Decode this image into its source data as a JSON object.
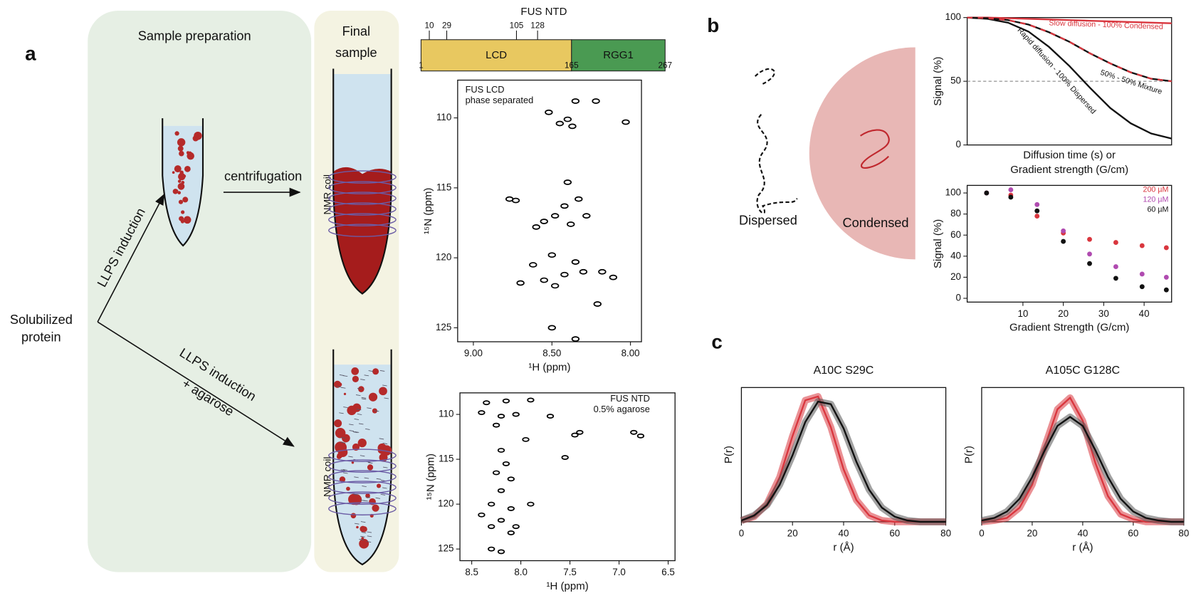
{
  "panel_a": {
    "label": "a",
    "sample_prep_title": "Sample preparation",
    "final_sample_title": [
      "Final",
      "sample"
    ],
    "solubilized": [
      "Solubilized",
      "protein"
    ],
    "llps_induction": "LLPS induction",
    "centrifugation": "centrifugation",
    "llps_agarose": [
      "LLPS induction",
      "+ agarose"
    ],
    "nmr_coil_top": "NMR coil",
    "nmr_coil_bottom": "NMR coil"
  },
  "domain_map": {
    "title": "FUS NTD",
    "segments": [
      {
        "name": "LCD",
        "start": 1,
        "end": 165,
        "color": "#e8c860"
      },
      {
        "name": "RGG1",
        "start": 165,
        "end": 267,
        "color": "#4a9a52"
      }
    ],
    "bottom_positions": [
      1,
      165,
      267
    ],
    "top_positions": [
      10,
      29,
      105,
      128
    ]
  },
  "panel_b": {
    "label": "b",
    "dispersed": "Dispersed",
    "condensed": "Condensed"
  },
  "panel_c": {
    "label": "c"
  },
  "chart_data": [
    {
      "type": "scatter",
      "annotation": [
        "FUS LCD",
        "phase separated"
      ],
      "xlabel": "¹H (ppm)",
      "ylabel": "¹⁵N (ppm)",
      "xlim": [
        9.1,
        7.93
      ],
      "ylim": [
        126,
        107.3
      ],
      "xticks": [
        {
          "value": 9,
          "label": "9.00"
        },
        {
          "value": 8.5,
          "label": "8.50"
        },
        {
          "value": 8,
          "label": "8.00"
        }
      ],
      "yticks": [
        110,
        115,
        120,
        125
      ],
      "x": [
        8.4,
        8.37,
        8.45,
        8.52,
        8.35,
        8.22,
        8.03,
        8.4,
        8.33,
        8.42,
        8.48,
        8.38,
        8.55,
        8.6,
        8.28,
        8.5,
        8.35,
        8.62,
        8.42,
        8.55,
        8.3,
        8.48,
        8.7,
        8.18,
        8.11,
        8.21,
        8.5,
        8.35,
        8.73,
        8.77
      ],
      "series": [
        {
          "color": "#000000",
          "values": [
            110.1,
            110.6,
            110.4,
            109.6,
            108.8,
            108.8,
            110.3,
            114.6,
            115.8,
            116.3,
            117,
            117.6,
            117.4,
            117.8,
            117,
            119.8,
            120.3,
            120.5,
            121.2,
            121.6,
            121,
            122,
            121.8,
            121,
            121.4,
            123.3,
            125,
            125.8,
            115.9,
            115.8
          ]
        }
      ]
    },
    {
      "type": "scatter",
      "annotation": [
        "FUS NTD",
        "0.5% agarose"
      ],
      "xlabel": "¹H (ppm)",
      "ylabel": "¹⁵N (ppm)",
      "xlim": [
        8.62,
        6.43
      ],
      "ylim": [
        126.3,
        107.6
      ],
      "xticks": [
        8.5,
        {
          "value": 8,
          "label": "8.0"
        },
        7.5,
        {
          "value": 7,
          "label": "7.0"
        },
        6.5
      ],
      "yticks": [
        110,
        115,
        120,
        125
      ],
      "x": [
        8.35,
        8.15,
        7.9,
        8.4,
        8.2,
        8.05,
        8.25,
        7.7,
        7.45,
        7.4,
        6.78,
        6.85,
        7.95,
        8.2,
        8.15,
        8.25,
        8.1,
        7.55,
        8.2,
        8.3,
        8.1,
        7.9,
        8.4,
        8.2,
        8.05,
        8.3,
        8.1,
        8.3,
        8.2
      ],
      "series": [
        {
          "color": "#000000",
          "values": [
            108.7,
            108.5,
            108.4,
            109.8,
            110.2,
            110,
            111.2,
            110.2,
            112.3,
            112,
            112.4,
            112,
            112.8,
            114,
            115.5,
            116.5,
            117.2,
            114.8,
            118.5,
            120,
            120.5,
            120,
            121.2,
            121.8,
            122.5,
            122.5,
            123.2,
            125,
            125.3
          ]
        }
      ]
    },
    {
      "type": "line",
      "xlabel": [
        "Diffusion time (s) or",
        "Gradient strength (G/cm)"
      ],
      "ylabel": "Signal (%)",
      "xlim": [
        0,
        10
      ],
      "ylim": [
        0,
        100
      ],
      "yticks": [
        0,
        50,
        100
      ],
      "hline": 50,
      "x": [
        0,
        1,
        2,
        3,
        4,
        5,
        6,
        7,
        8,
        9,
        10
      ],
      "series": [
        {
          "name": "Slow diffusion - 100% Condensed",
          "color": "#d9363e",
          "values": [
            100,
            100,
            99.5,
            99,
            98.5,
            98,
            97.5,
            97,
            96.5,
            96,
            95.5
          ]
        },
        {
          "name": "Rapid diffusion - 100% Dispersed",
          "color": "#111111",
          "values": [
            100,
            99,
            96,
            89,
            77,
            62,
            45,
            29,
            17,
            9,
            5
          ]
        },
        {
          "name": "50% - 50% Mixture",
          "color": "#111111",
          "dash_color": "#d9363e",
          "values": [
            100,
            99.5,
            98,
            94.5,
            88.5,
            81,
            72,
            64,
            57,
            52,
            50
          ]
        }
      ]
    },
    {
      "type": "scatter",
      "xlabel": "Gradient Strength (G/cm)",
      "ylabel": "Signal (%)",
      "xlim": [
        -3.8,
        46.8
      ],
      "ylim": [
        -3.6,
        107.2
      ],
      "xticks": [
        10,
        20,
        30,
        40
      ],
      "yticks": [
        0,
        20,
        40,
        60,
        80,
        100
      ],
      "legend": "upper right",
      "x": [
        1,
        7,
        13.5,
        20,
        26.5,
        33,
        39.5,
        45.5
      ],
      "series": [
        {
          "name": "200 µM",
          "color": "#d9363e",
          "values": [
            100,
            98,
            78,
            62,
            56,
            53,
            50,
            48
          ]
        },
        {
          "name": "120 µM",
          "color": "#b04bb0",
          "values": [
            100,
            103,
            89,
            64,
            42,
            30,
            23,
            20
          ]
        },
        {
          "name": "60 µM",
          "color": "#111111",
          "values": [
            100,
            96,
            83,
            54,
            33,
            19,
            11,
            8
          ]
        }
      ]
    },
    {
      "type": "line",
      "title": "A10C S29C",
      "xlabel": "r (Å)",
      "ylabel": "P(r)",
      "xlim": [
        0,
        80
      ],
      "ylim": [
        0,
        1.05
      ],
      "xticks": [
        0,
        20,
        40,
        60,
        80
      ],
      "x": [
        0,
        5,
        10,
        15,
        20,
        25,
        30,
        35,
        40,
        45,
        50,
        55,
        60,
        65,
        70,
        75,
        80
      ],
      "series": [
        {
          "color": "#d9363e",
          "values": [
            0.01,
            0.04,
            0.14,
            0.35,
            0.67,
            0.95,
            0.98,
            0.74,
            0.41,
            0.17,
            0.05,
            0.01,
            0,
            0,
            0,
            0,
            0
          ]
        },
        {
          "color": "#111111",
          "values": [
            0.01,
            0.05,
            0.13,
            0.29,
            0.52,
            0.78,
            0.94,
            0.92,
            0.73,
            0.47,
            0.25,
            0.11,
            0.04,
            0.01,
            0,
            0,
            0
          ]
        }
      ]
    },
    {
      "type": "line",
      "title": "A105C G128C",
      "xlabel": "r (Å)",
      "ylabel": "P(r)",
      "xlim": [
        0,
        80
      ],
      "ylim": [
        0,
        1.05
      ],
      "xticks": [
        0,
        20,
        40,
        60,
        80
      ],
      "x": [
        0,
        5,
        10,
        15,
        20,
        25,
        30,
        35,
        40,
        45,
        50,
        55,
        60,
        65,
        70,
        75,
        80
      ],
      "series": [
        {
          "color": "#d9363e",
          "values": [
            0,
            0.01,
            0.03,
            0.11,
            0.29,
            0.59,
            0.88,
            0.97,
            0.79,
            0.46,
            0.2,
            0.06,
            0.02,
            0,
            0,
            0,
            0
          ]
        },
        {
          "color": "#111111",
          "values": [
            0.01,
            0.03,
            0.08,
            0.18,
            0.35,
            0.56,
            0.75,
            0.82,
            0.75,
            0.56,
            0.35,
            0.18,
            0.08,
            0.03,
            0.01,
            0,
            0
          ]
        }
      ]
    }
  ]
}
